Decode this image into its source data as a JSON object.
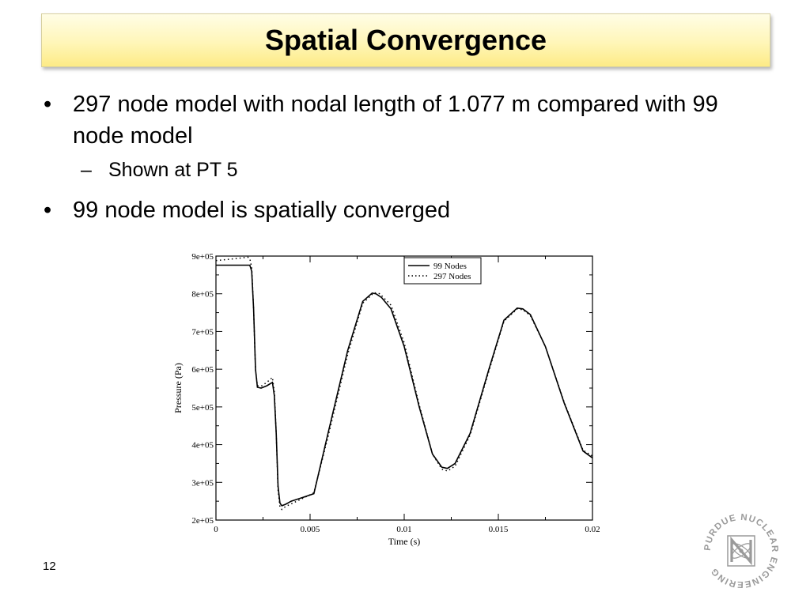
{
  "slide": {
    "title": "Spatial Convergence",
    "bullet1": "297 node model with nodal length of 1.077 m compared with 99 node model",
    "sub1": "Shown at PT 5",
    "bullet2": "99 node model is spatially converged",
    "bullet_glyph": "•",
    "sub_glyph": "–",
    "page_number": "12"
  },
  "logo": {
    "text": "PURDUE NUCLEAR ENGINEERING",
    "icon": "purdue-nuclear-engineering-logo"
  },
  "chart_data": {
    "type": "line",
    "xlabel": "Time (s)",
    "ylabel": "Pressure (Pa)",
    "xlim": [
      0,
      0.02
    ],
    "ylim": [
      200000,
      900000
    ],
    "xticks": [
      0,
      0.005,
      0.01,
      0.015,
      0.02
    ],
    "xtick_labels": [
      "0",
      "0.005",
      "0.01",
      "0.015",
      "0.02"
    ],
    "yticks": [
      200000,
      300000,
      400000,
      500000,
      600000,
      700000,
      800000,
      900000
    ],
    "ytick_labels": [
      "2e+05",
      "3e+05",
      "4e+05",
      "5e+05",
      "6e+05",
      "7e+05",
      "8e+05",
      "9e+05"
    ],
    "grid": false,
    "legend_position": "top-right",
    "series": [
      {
        "name": "99 Nodes",
        "style": "solid",
        "color": "#000000",
        "x": [
          0,
          0.0018,
          0.0019,
          0.002,
          0.0021,
          0.0022,
          0.0024,
          0.0027,
          0.003,
          0.0031,
          0.0032,
          0.0033,
          0.0034,
          0.0035,
          0.0037,
          0.004,
          0.0045,
          0.0052,
          0.006,
          0.007,
          0.0078,
          0.0083,
          0.0085,
          0.0088,
          0.0093,
          0.01,
          0.0108,
          0.0115,
          0.012,
          0.0123,
          0.0127,
          0.0135,
          0.0145,
          0.0153,
          0.016,
          0.0163,
          0.0167,
          0.0175,
          0.0185,
          0.0195,
          0.02
        ],
        "y": [
          876000,
          876000,
          860000,
          760000,
          600000,
          552000,
          550000,
          556000,
          565000,
          530000,
          430000,
          290000,
          245000,
          238000,
          242000,
          250000,
          258000,
          270000,
          440000,
          650000,
          780000,
          802000,
          800000,
          790000,
          760000,
          660000,
          500000,
          375000,
          340000,
          337000,
          350000,
          430000,
          600000,
          730000,
          762000,
          760000,
          745000,
          660000,
          510000,
          383000,
          365000
        ]
      },
      {
        "name": "297 Nodes",
        "style": "dotted",
        "color": "#000000",
        "x": [
          0,
          0.001,
          0.0017,
          0.0018,
          0.0019,
          0.002,
          0.0021,
          0.0022,
          0.0024,
          0.0027,
          0.003,
          0.0031,
          0.0032,
          0.0033,
          0.0034,
          0.0035,
          0.0037,
          0.004,
          0.0045,
          0.0052,
          0.006,
          0.007,
          0.0078,
          0.0084,
          0.0087,
          0.0093,
          0.01,
          0.0108,
          0.0115,
          0.012,
          0.0123,
          0.0127,
          0.0135,
          0.0145,
          0.0153,
          0.016,
          0.0163,
          0.0167,
          0.0175,
          0.0185,
          0.0195,
          0.02
        ],
        "y": [
          888000,
          893000,
          897000,
          893000,
          870000,
          760000,
          600000,
          556000,
          555000,
          565000,
          578000,
          540000,
          430000,
          280000,
          235000,
          228000,
          236000,
          243000,
          255000,
          272000,
          430000,
          640000,
          775000,
          803000,
          800000,
          770000,
          670000,
          505000,
          375000,
          335000,
          330000,
          343000,
          425000,
          595000,
          727000,
          760000,
          758000,
          742000,
          660000,
          512000,
          385000,
          370000
        ]
      }
    ]
  }
}
